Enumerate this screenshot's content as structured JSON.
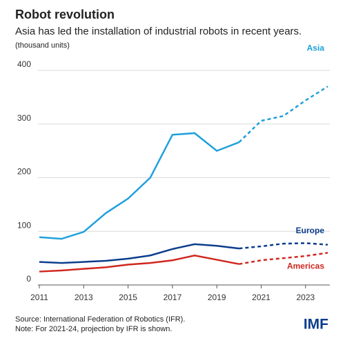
{
  "chart_data": {
    "type": "line",
    "title": "Robot revolution",
    "subtitle": "Asia has led the installation of industrial robots in recent years.",
    "unit_label": "(thousand units)",
    "source": "Source: International Federation of Robotics (IFR).",
    "note": "Note: For 2021-24, projection by IFR is shown.",
    "logo": "IMF",
    "x": [
      2011,
      2012,
      2013,
      2014,
      2015,
      2016,
      2017,
      2018,
      2019,
      2020,
      2021,
      2022,
      2023,
      2024
    ],
    "dashed_from": 2020,
    "series": [
      {
        "name": "Asia",
        "color": "#1ea0dc",
        "values": [
          89,
          86,
          99,
          134,
          161,
          200,
          280,
          283,
          250,
          266,
          306,
          315,
          344,
          370
        ]
      },
      {
        "name": "Europe",
        "color": "#0b3d8c",
        "values": [
          43,
          41,
          43,
          45,
          49,
          55,
          67,
          76,
          73,
          68,
          72,
          77,
          78,
          75
        ]
      },
      {
        "name": "Americas",
        "color": "#d0271f",
        "values": [
          25,
          27,
          30,
          33,
          38,
          41,
          46,
          55,
          47,
          39,
          46,
          50,
          54,
          60
        ]
      }
    ],
    "xlim": [
      2011,
      2024
    ],
    "xticks": [
      2011,
      2013,
      2015,
      2017,
      2019,
      2021,
      2023
    ],
    "ylim": [
      0,
      400
    ],
    "yticks": [
      0,
      100,
      200,
      300,
      400
    ],
    "grid": true
  }
}
